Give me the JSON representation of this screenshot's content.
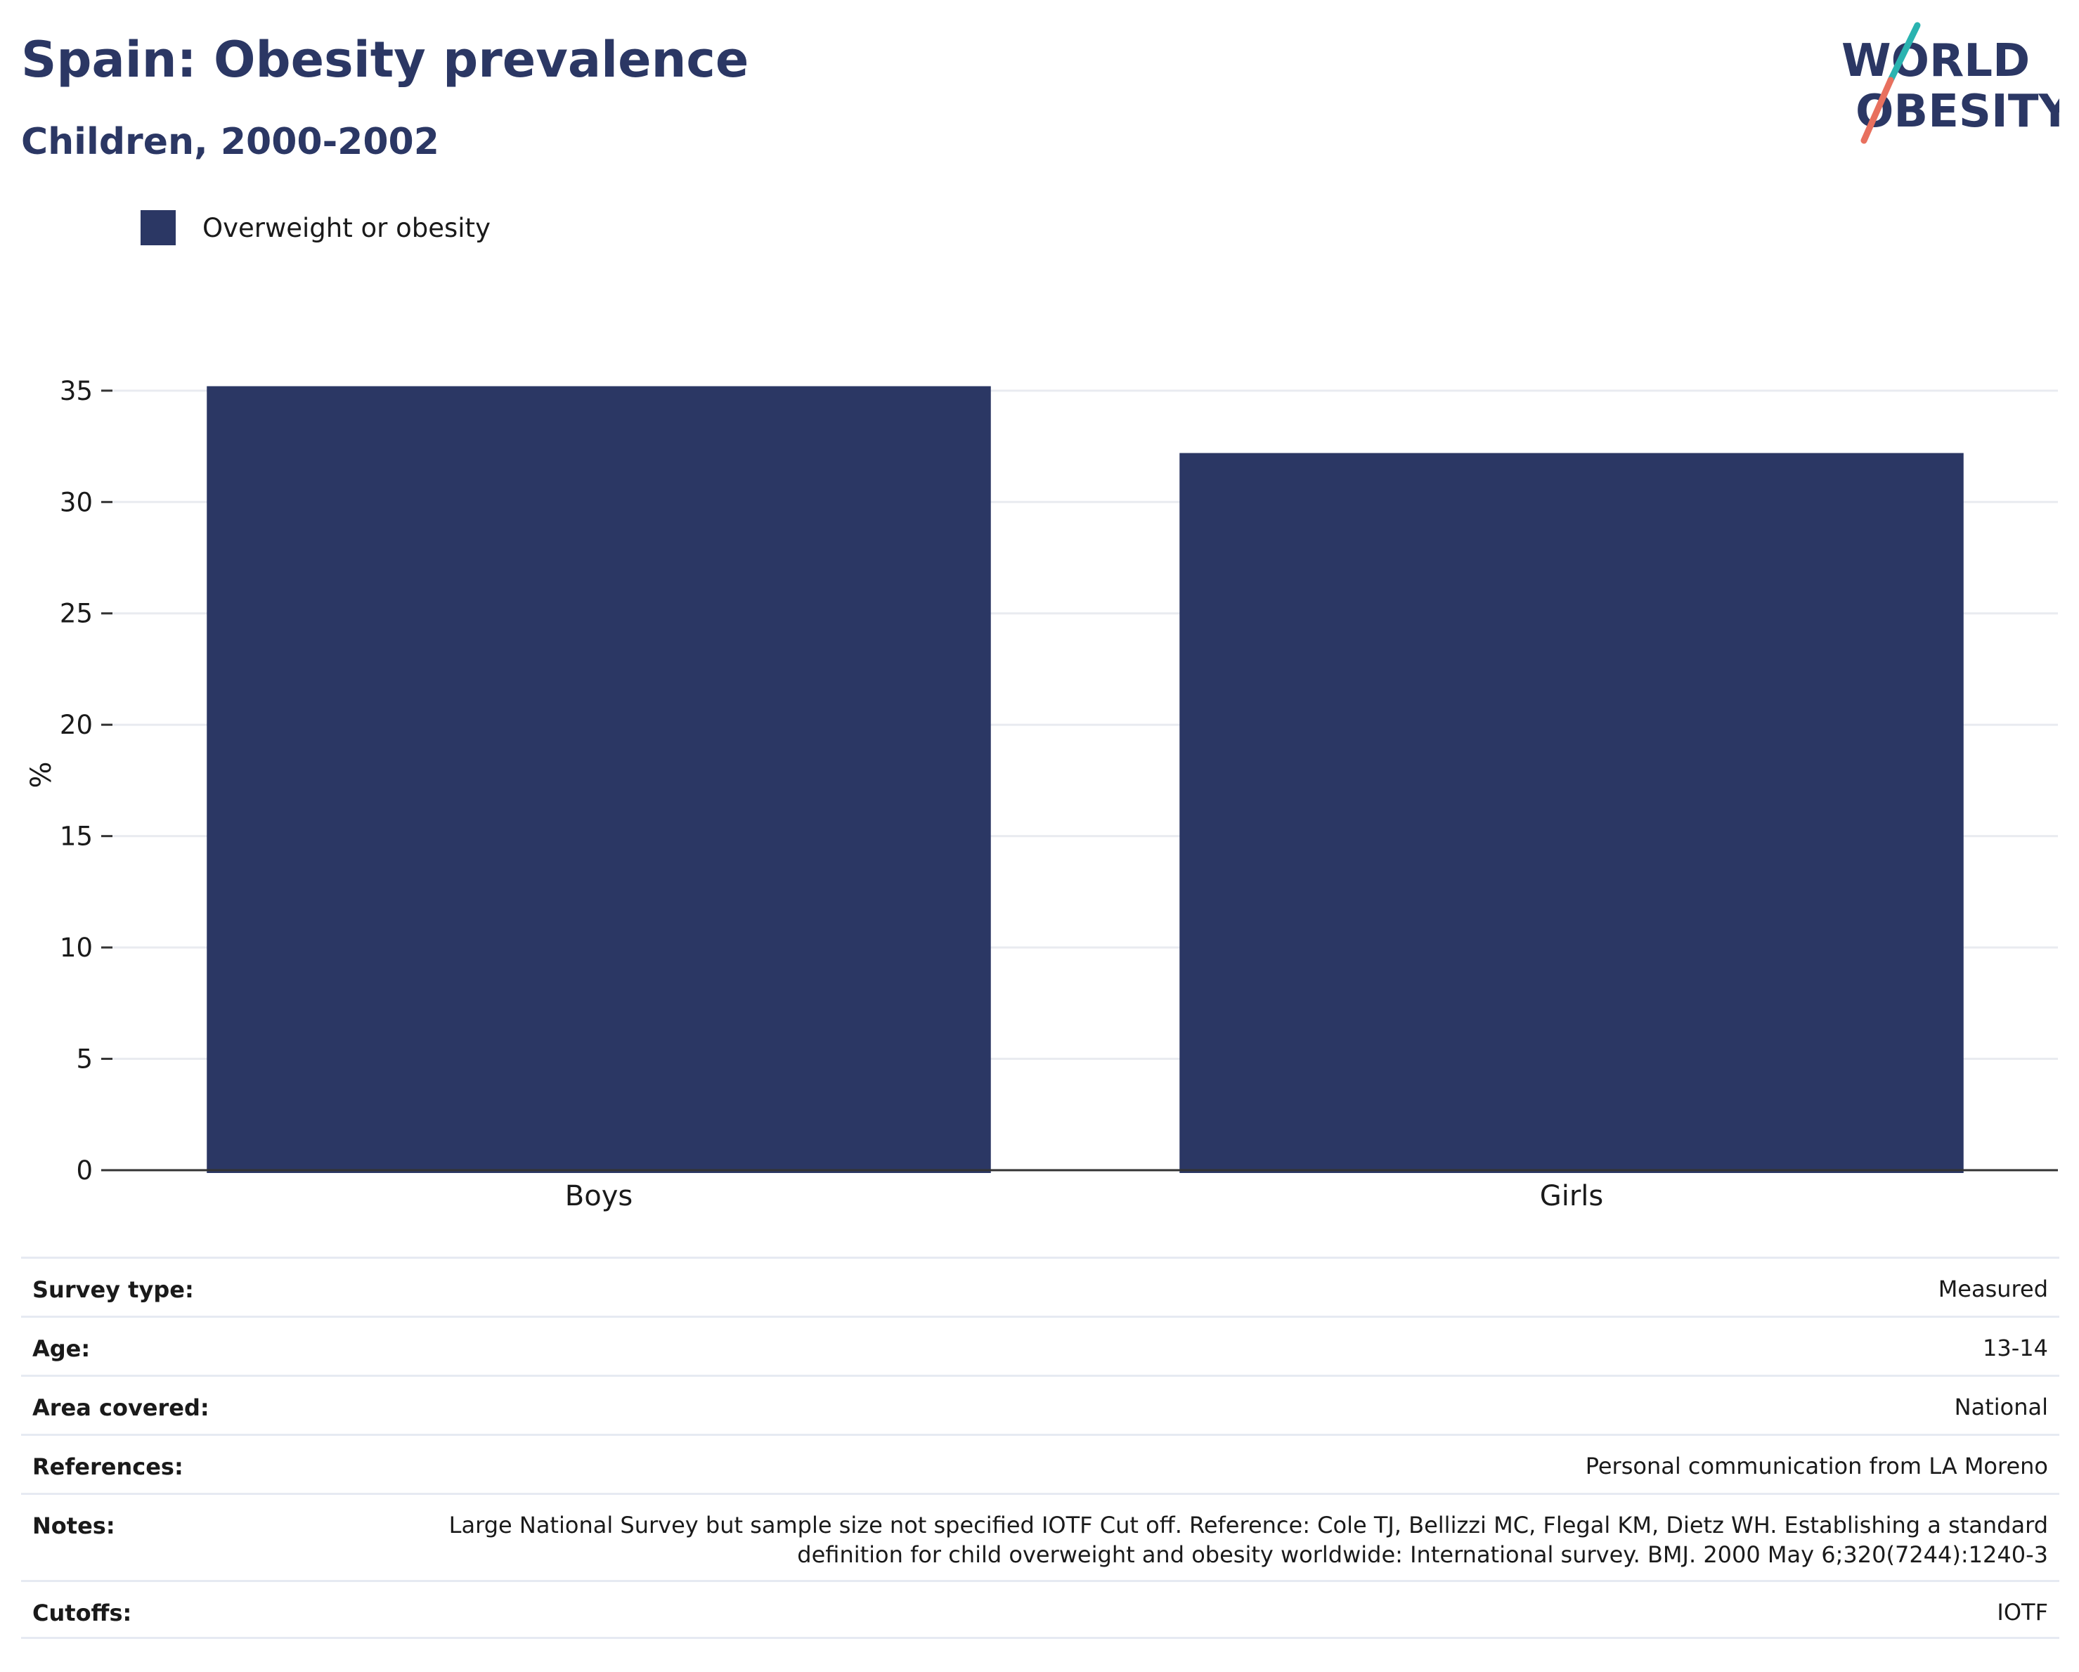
{
  "header": {
    "title": "Spain: Obesity prevalence",
    "subtitle": "Children, 2000-2002"
  },
  "logo": {
    "line1": "WORLD",
    "line2": "OBESITY",
    "colors": {
      "text": "#2b3764",
      "accent_teal": "#2ab3b0",
      "accent_coral": "#e8705e"
    }
  },
  "chart_data": {
    "type": "bar",
    "categories": [
      "Boys",
      "Girls"
    ],
    "series": [
      {
        "name": "Overweight or obesity",
        "values": [
          35.2,
          32.2
        ],
        "color": "#2b3764"
      }
    ],
    "xlabel": "",
    "ylabel": "%",
    "ylim": [
      0,
      35.5
    ],
    "yticks": [
      0,
      5,
      10,
      15,
      20,
      25,
      30,
      35
    ],
    "grid": true,
    "legend": "top-left"
  },
  "meta": {
    "rows": [
      {
        "key": "Survey type:",
        "value": "Measured"
      },
      {
        "key": "Age:",
        "value": "13-14"
      },
      {
        "key": "Area covered:",
        "value": "National"
      },
      {
        "key": "References:",
        "value": "Personal communication from LA Moreno"
      },
      {
        "key": "Notes:",
        "value": "Large National Survey but sample size not specified IOTF Cut off. Reference: Cole TJ, Bellizzi MC, Flegal KM, Dietz WH. Establishing a standard definition for child overweight and obesity worldwide: International survey. BMJ. 2000 May 6;320(7244):1240-3"
      },
      {
        "key": "Cutoffs:",
        "value": "IOTF"
      }
    ]
  }
}
